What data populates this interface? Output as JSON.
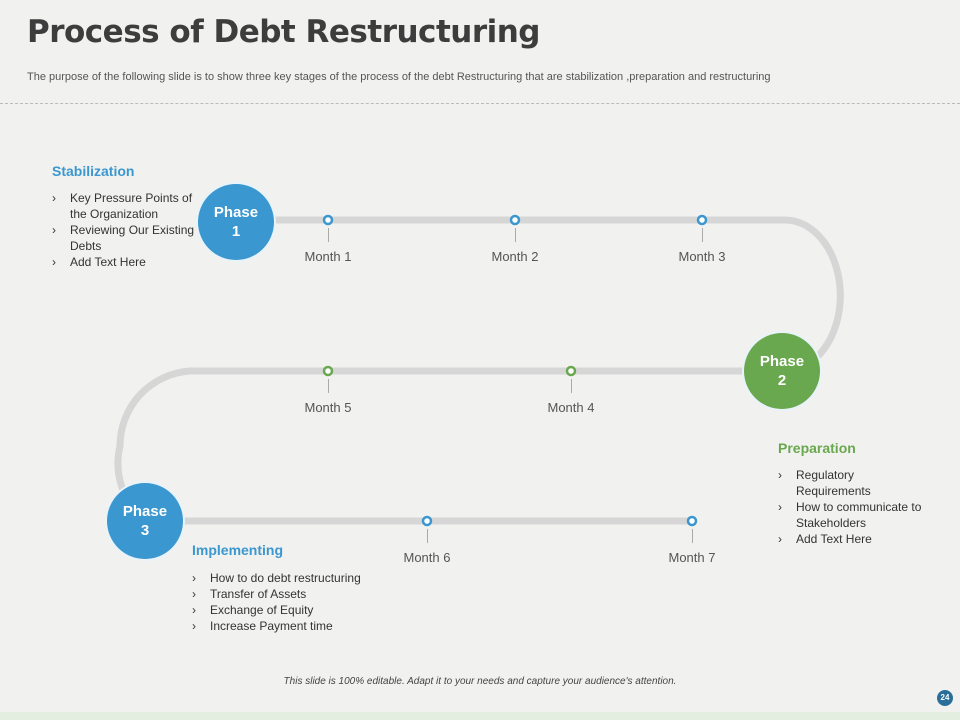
{
  "title": "Process of Debt Restructuring",
  "subtitle": "The purpose of the following slide is to show three key stages of the process of the debt Restructuring  that are stabilization ,preparation and restructuring",
  "colors": {
    "blue": "#3a97cf",
    "green": "#6aa84f",
    "track": "#d6d6d6"
  },
  "phases": [
    {
      "label": "Phase 1"
    },
    {
      "label": "Phase 2"
    },
    {
      "label": "Phase 3"
    }
  ],
  "months": [
    "Month 1",
    "Month 2",
    "Month 3",
    "Month 4",
    "Month 5",
    "Month 6",
    "Month 7"
  ],
  "sections": {
    "stabilization": {
      "heading": "Stabilization",
      "items": [
        "Key Pressure Points of the Organization",
        "Reviewing  Our Existing Debts",
        "Add Text Here"
      ]
    },
    "preparation": {
      "heading": "Preparation",
      "items": [
        "Regulatory Requirements",
        "How to communicate to Stakeholders",
        "Add Text Here"
      ]
    },
    "implementing": {
      "heading": "Implementing",
      "items": [
        "How to do debt restructuring",
        "Transfer  of Assets",
        "Exchange of Equity",
        "Increase Payment time"
      ]
    }
  },
  "footer": "This slide is 100% editable. Adapt it to your needs and capture your audience's attention.",
  "page_number": "24"
}
